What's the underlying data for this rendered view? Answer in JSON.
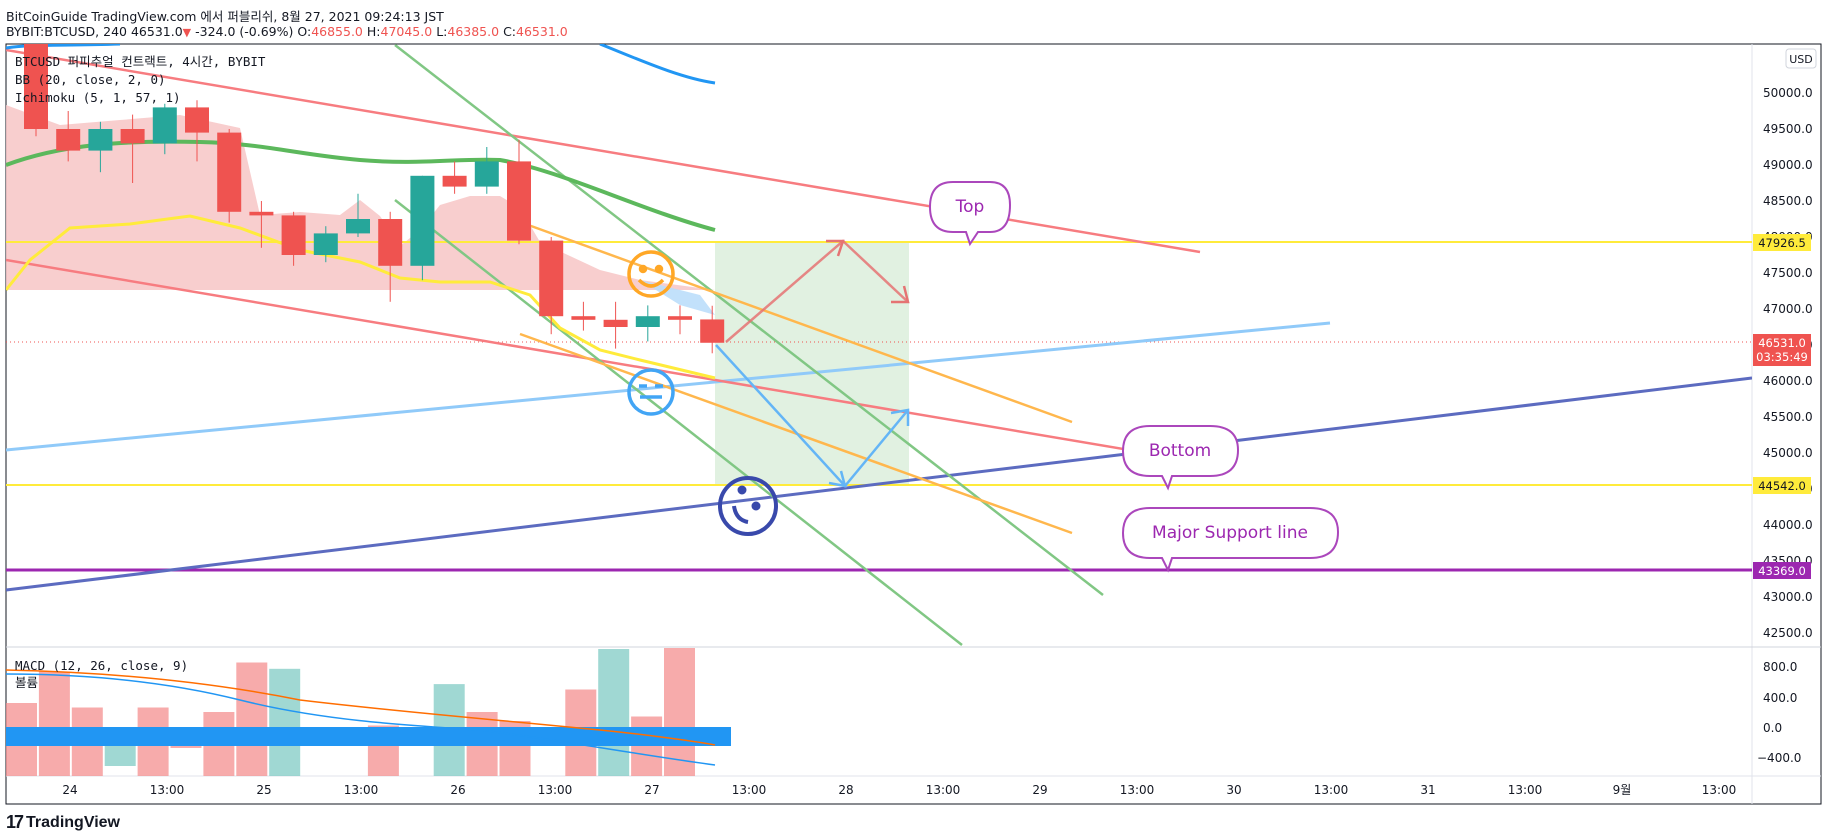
{
  "header": {
    "line1": "BitCoinGuide TradingView.com 에서 퍼블리쉬, 8월 27, 2021 09:24:13 JST",
    "symbol": "BYBIT:BTCUSD, 240 46531.0",
    "change": "-324.0 (-0.69%)",
    "o_label": "O:",
    "o": "46855.0",
    "h_label": "H:",
    "h": "47045.0",
    "l_label": "L:",
    "l": "46385.0",
    "c_label": "C:",
    "c": "46531.0"
  },
  "legend": {
    "title": "BTCUSD 퍼피추얼 컨트랙트, 4시간, BYBIT",
    "bb": "BB (20, close, 2, 0)",
    "ichimoku": "Ichimoku (5, 1, 57, 1)",
    "macd": "MACD (12, 26, close, 9)",
    "macd_sub": "볼륨"
  },
  "currency_badge": "USD",
  "price_labels": {
    "resistance": "47926.5",
    "last": "46531.0",
    "countdown": "03:35:49",
    "support": "44542.0",
    "major_support": "43369.0"
  },
  "callouts": {
    "top": "Top",
    "bottom": "Bottom",
    "major_support": "Major Support line"
  },
  "footer": {
    "brand": "TradingView"
  },
  "colors": {
    "up": "#26a69a",
    "down": "#ef5350",
    "yellow_line": "#ffeb3b",
    "purple_line": "#9c27b0",
    "navy_trend": "#3f51b5",
    "lightblue_trend": "#90caf9",
    "green_channel": "#81c784",
    "orange_channel": "#ffb74d",
    "red_channel": "#f77c80",
    "callout": "#9c27b0",
    "macd_line": "#2196f3",
    "signal_line": "#ff6d00"
  },
  "chart_data": {
    "type": "candlestick",
    "timeframe": "4h",
    "y_axis_ticks": [
      50000,
      49500,
      49000,
      48500,
      48000,
      47500,
      47000,
      46500,
      46000,
      45500,
      45000,
      44500,
      44000,
      43500,
      43000,
      42500
    ],
    "x_axis_ticks": [
      "24",
      "13:00",
      "25",
      "13:00",
      "26",
      "13:00",
      "27",
      "13:00",
      "28",
      "13:00",
      "29",
      "13:00",
      "30",
      "13:00",
      "31",
      "13:00",
      "9월",
      "13:00"
    ],
    "candles": [
      {
        "o": 50700,
        "h": 50950,
        "c": 49500,
        "l": 49400
      },
      {
        "o": 49500,
        "h": 49750,
        "c": 49200,
        "l": 49050
      },
      {
        "o": 49200,
        "h": 49600,
        "c": 49500,
        "l": 48900
      },
      {
        "o": 49500,
        "h": 49700,
        "c": 49300,
        "l": 48750
      },
      {
        "o": 49300,
        "h": 49850,
        "c": 49800,
        "l": 49150
      },
      {
        "o": 49800,
        "h": 49900,
        "c": 49450,
        "l": 49050
      },
      {
        "o": 49450,
        "h": 49500,
        "c": 48350,
        "l": 48200
      },
      {
        "o": 48350,
        "h": 48500,
        "c": 48300,
        "l": 47850
      },
      {
        "o": 48300,
        "h": 48350,
        "c": 47750,
        "l": 47600
      },
      {
        "o": 47750,
        "h": 48150,
        "c": 48050,
        "l": 47650
      },
      {
        "o": 48050,
        "h": 48600,
        "c": 48250,
        "l": 48000
      },
      {
        "o": 48250,
        "h": 48350,
        "c": 47600,
        "l": 47100
      },
      {
        "o": 47600,
        "h": 48850,
        "c": 48850,
        "l": 47400
      },
      {
        "o": 48850,
        "h": 49050,
        "c": 48700,
        "l": 48600
      },
      {
        "o": 48700,
        "h": 49250,
        "c": 49050,
        "l": 48600
      },
      {
        "o": 49050,
        "h": 49350,
        "c": 47950,
        "l": 47900
      },
      {
        "o": 47950,
        "h": 48000,
        "c": 46900,
        "l": 46650
      },
      {
        "o": 46900,
        "h": 47100,
        "c": 46850,
        "l": 46700
      },
      {
        "o": 46850,
        "h": 47100,
        "c": 46750,
        "l": 46450
      },
      {
        "o": 46750,
        "h": 47050,
        "c": 46900,
        "l": 46550
      },
      {
        "o": 46900,
        "h": 47050,
        "c": 46850,
        "l": 46650
      },
      {
        "o": 46855,
        "h": 47045,
        "c": 46531,
        "l": 46385
      }
    ],
    "horizontal_levels": [
      47926.5,
      44542.0,
      43369.0
    ],
    "macd_histogram": [
      300,
      650,
      250,
      -400,
      250,
      -200,
      200,
      750,
      680,
      -150,
      -150,
      50,
      -100,
      510,
      200,
      100,
      -100,
      450,
      900,
      150,
      950,
      -100
    ],
    "macd_range": [
      -650,
      950
    ]
  }
}
